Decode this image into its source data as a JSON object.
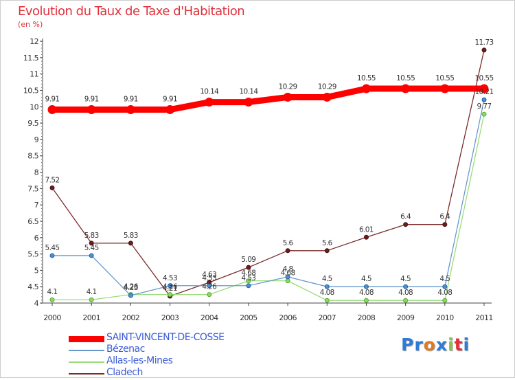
{
  "title": "Evolution du Taux de Taxe d'Habitation",
  "subtitle": "(en %)",
  "logo_letters": [
    {
      "ch": "P",
      "color": "#2e7bd6"
    },
    {
      "ch": "r",
      "color": "#2e7bd6"
    },
    {
      "ch": "o",
      "color": "#e07a20"
    },
    {
      "ch": "x",
      "color": "#2e7bd6"
    },
    {
      "ch": "i",
      "color": "#8bc34a"
    },
    {
      "ch": "t",
      "color": "#e0303a"
    },
    {
      "ch": "i",
      "color": "#2e7bd6"
    }
  ],
  "chart_data": {
    "type": "line",
    "title": "Evolution du Taux de Taxe d'Habitation",
    "xlabel": "",
    "ylabel": "(en %)",
    "x": [
      "2000",
      "2001",
      "2002",
      "2003",
      "2004",
      "2005",
      "2006",
      "2007",
      "2008",
      "2009",
      "2010",
      "2011"
    ],
    "ylim": [
      4,
      12
    ],
    "yticks": [
      "4",
      "4.5",
      "5",
      "5.5",
      "6",
      "6.5",
      "7",
      "7.5",
      "8",
      "8.5",
      "9",
      "9.5",
      "10",
      "10.5",
      "11",
      "11.5",
      "12"
    ],
    "grid": false,
    "legend": "bottom-left",
    "series": [
      {
        "name": "SAINT-VINCENT-DE-COSSE",
        "color": "#ff0000",
        "values": [
          9.91,
          9.91,
          9.91,
          9.91,
          10.14,
          10.14,
          10.29,
          10.29,
          10.55,
          10.55,
          10.55,
          10.55
        ],
        "labels": [
          "9.91",
          "9.91",
          "9.91",
          "9.91",
          "10.14",
          "10.14",
          "10.29",
          "10.29",
          "10.55",
          "10.55",
          "10.55",
          "10.55"
        ]
      },
      {
        "name": "Bézenac",
        "color": "#6699cc",
        "values": [
          5.45,
          5.45,
          4.23,
          4.53,
          4.53,
          4.53,
          4.8,
          4.5,
          4.5,
          4.5,
          4.5,
          10.21
        ],
        "labels": [
          "5.45",
          "5.45",
          "4.23",
          "4.53",
          "4.53",
          "4.53",
          "4.8",
          "4.5",
          "4.5",
          "4.5",
          "4.5",
          "10.21"
        ]
      },
      {
        "name": "Allas-les-Mines",
        "color": "#99dd77",
        "values": [
          4.1,
          4.1,
          4.26,
          4.26,
          4.26,
          4.68,
          4.68,
          4.08,
          4.08,
          4.08,
          4.08,
          9.77
        ],
        "labels": [
          "4.1",
          "4.1",
          "4.26",
          "4.26",
          "4.26",
          "4.68",
          "4.68",
          "4.08",
          "4.08",
          "4.08",
          "4.08",
          "9.77"
        ]
      },
      {
        "name": "Cladech",
        "color": "#7a2a2a",
        "values": [
          7.52,
          5.83,
          5.83,
          4.21,
          4.63,
          5.09,
          5.6,
          5.6,
          6.01,
          6.4,
          6.4,
          11.73
        ],
        "labels": [
          "7.52",
          "5.83",
          "5.83",
          "4.21",
          "4.63",
          "5.09",
          "5.6",
          "5.6",
          "6.01",
          "6.4",
          "6.4",
          "11.73"
        ]
      }
    ]
  }
}
